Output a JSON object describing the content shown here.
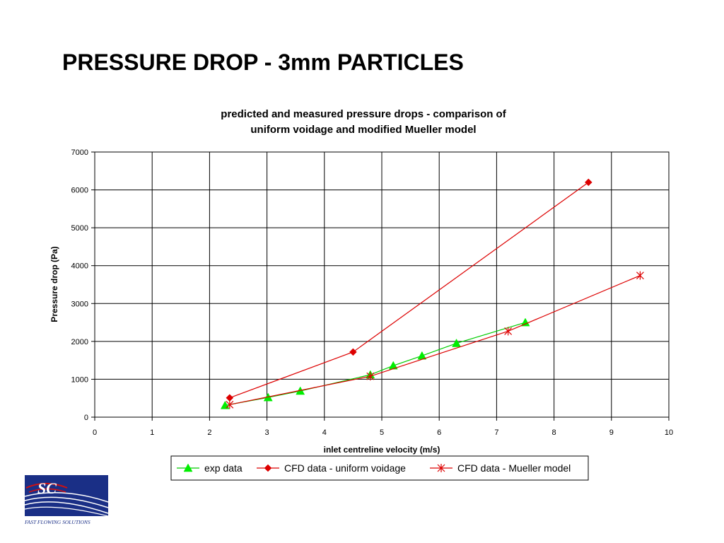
{
  "slide": {
    "title": "PRESSURE DROP - 3mm PARTICLES"
  },
  "logo": {
    "caption": "FAST FLOWING SOLUTIONS",
    "colors": {
      "navy": "#1a2f86",
      "red": "#d01010"
    }
  },
  "chart_data": {
    "type": "line",
    "title": "predicted and measured pressure drops - comparison of uniform voidage and modified Mueller model",
    "title_lines": [
      "predicted and measured pressure drops - comparison of",
      "uniform voidage and modified Mueller model"
    ],
    "xlabel": "inlet centreline velocity (m/s)",
    "ylabel": "Pressure drop (Pa)",
    "xlim": [
      0,
      10
    ],
    "ylim": [
      0,
      7000
    ],
    "xticks": [
      0,
      1,
      2,
      3,
      4,
      5,
      6,
      7,
      8,
      9,
      10
    ],
    "yticks": [
      0,
      1000,
      2000,
      3000,
      4000,
      5000,
      6000,
      7000
    ],
    "grid": true,
    "legend_position": "bottom",
    "series": [
      {
        "name": "exp data",
        "marker": "triangle",
        "color": "#00ee00",
        "line_color": "#00cc00",
        "x": [
          2.27,
          3.02,
          3.58,
          4.8,
          5.2,
          5.7,
          6.3,
          7.5
        ],
        "y": [
          310,
          520,
          690,
          1120,
          1360,
          1620,
          1950,
          2500
        ]
      },
      {
        "name": "CFD data - uniform voidage",
        "marker": "diamond",
        "color": "#dd0000",
        "line_color": "#dd0000",
        "x": [
          2.35,
          4.5,
          8.6
        ],
        "y": [
          510,
          1720,
          6200
        ]
      },
      {
        "name": "CFD data - Mueller model",
        "marker": "asterisk",
        "color": "#dd0000",
        "line_color": "#dd0000",
        "x": [
          2.35,
          4.8,
          7.2,
          9.5
        ],
        "y": [
          330,
          1080,
          2270,
          3740
        ]
      }
    ]
  }
}
